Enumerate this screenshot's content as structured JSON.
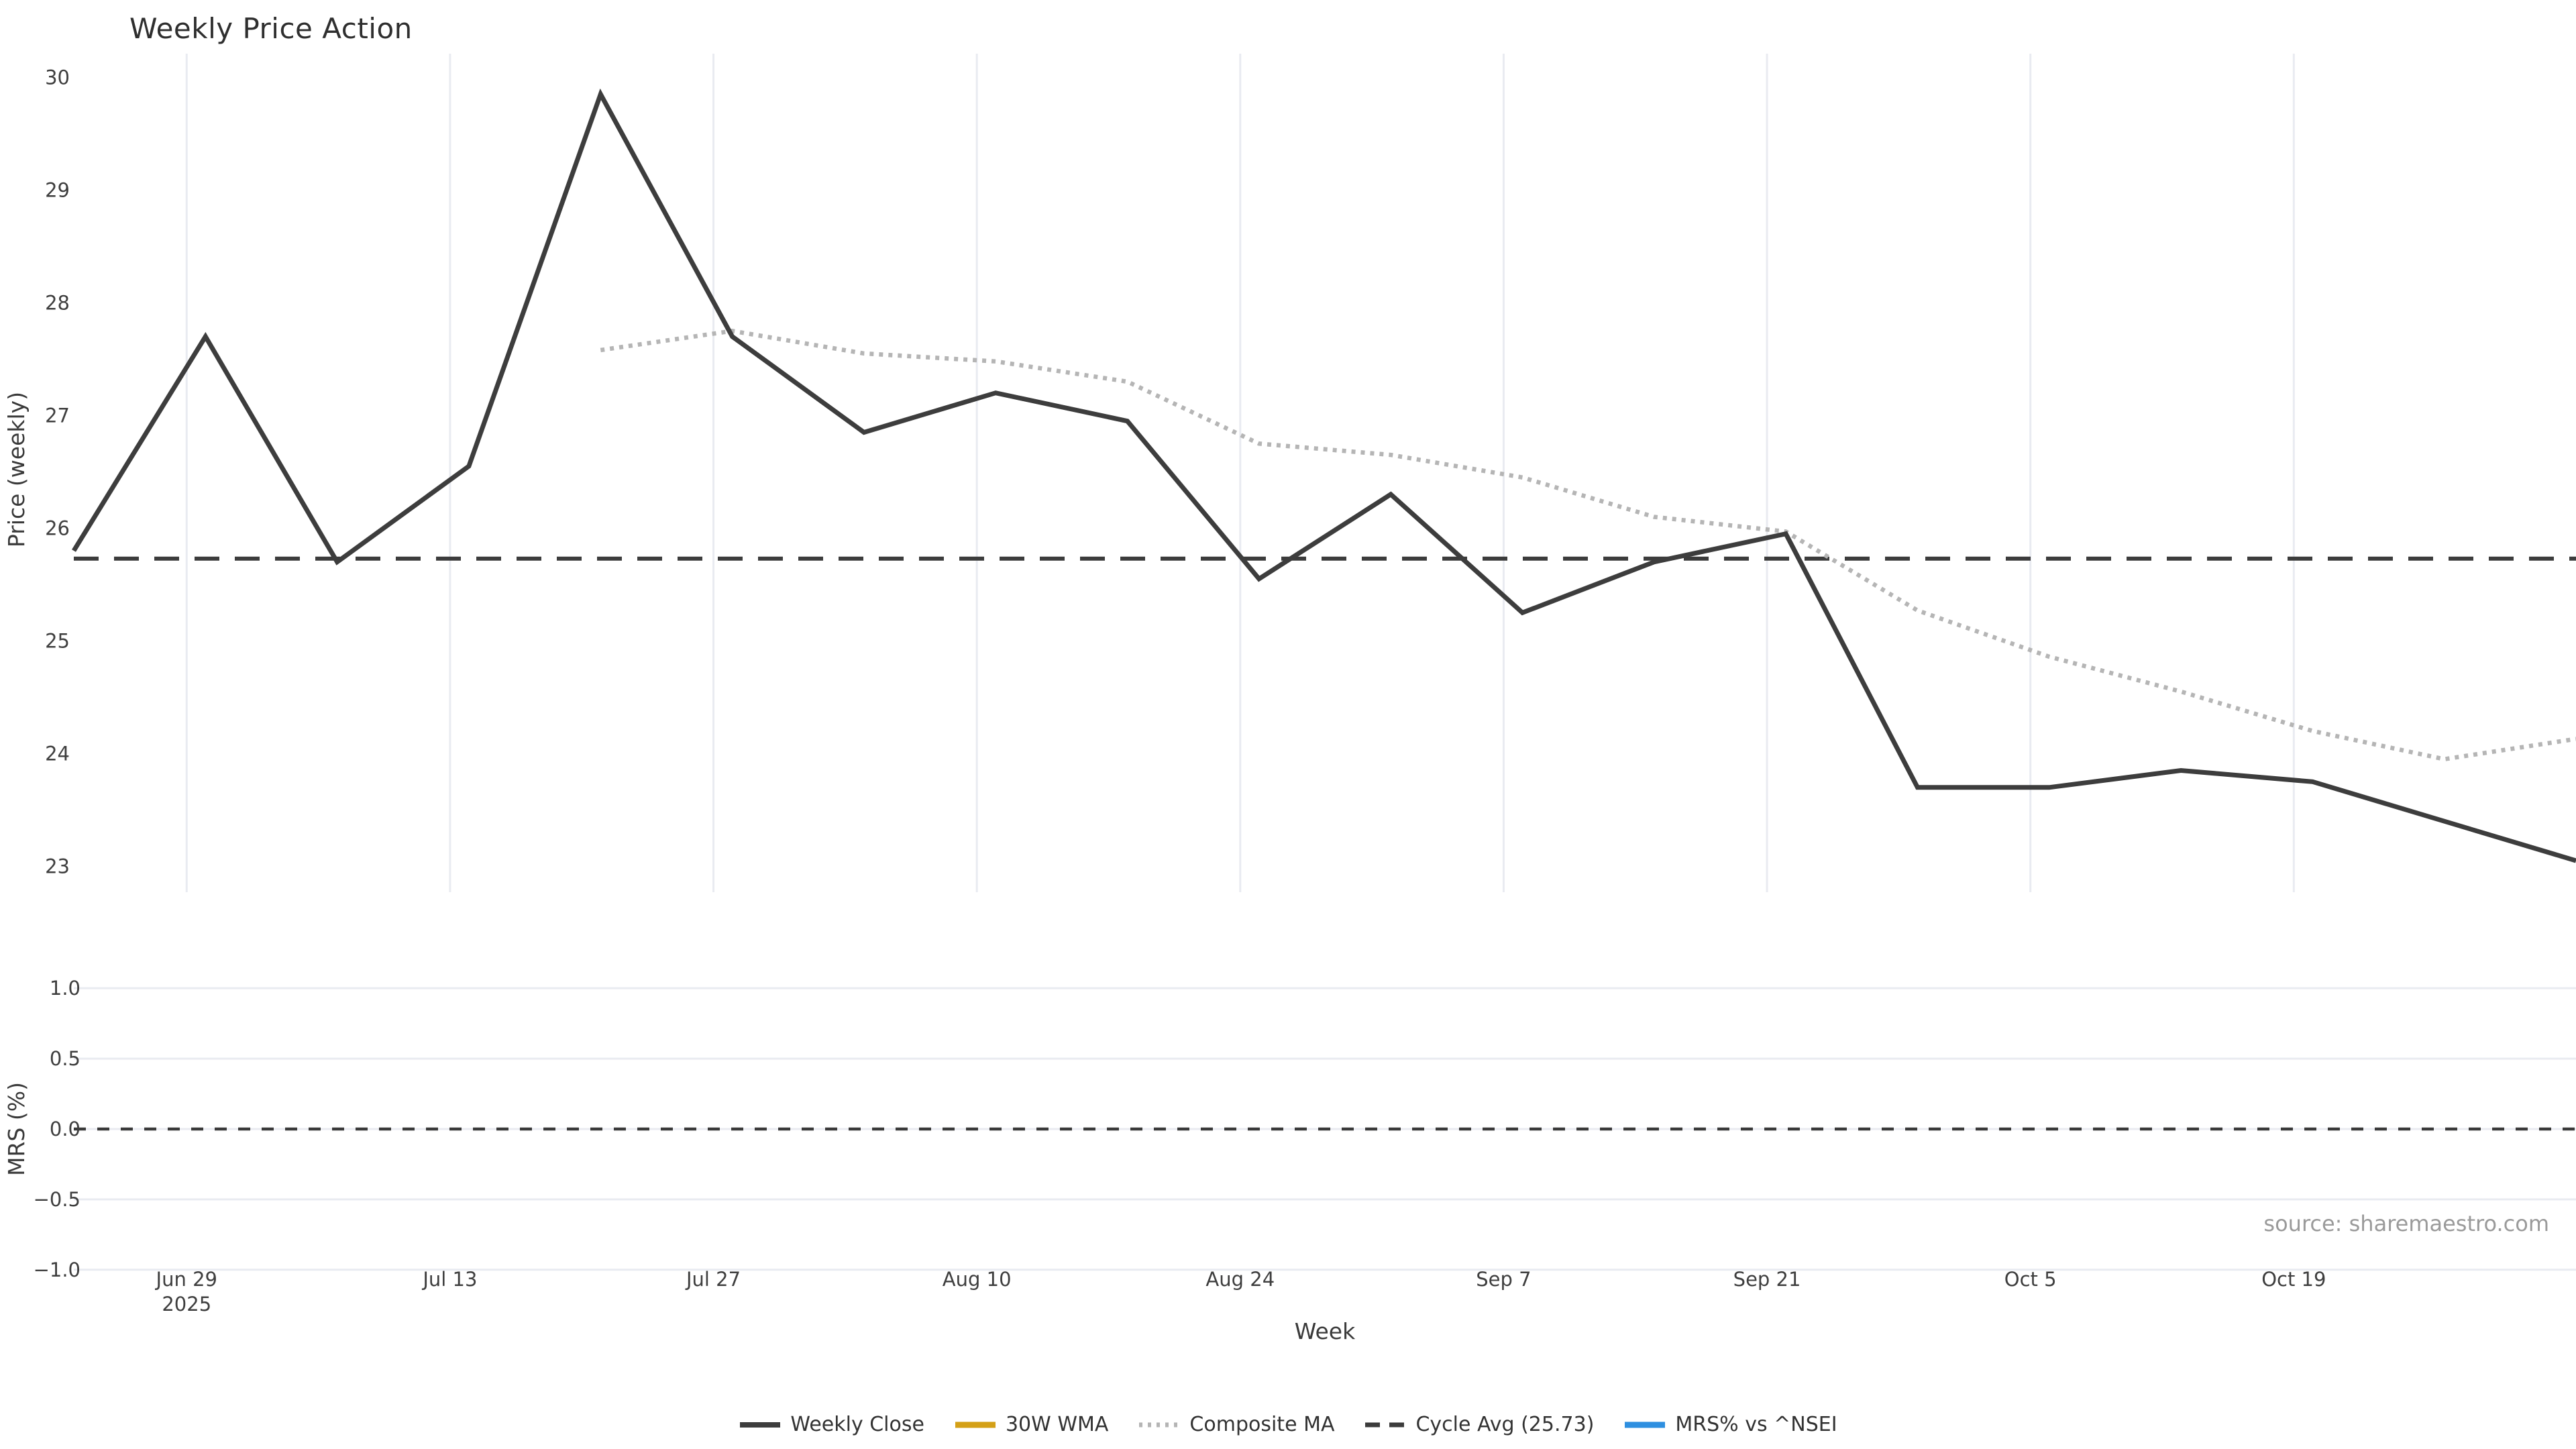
{
  "title": "Weekly Price Action",
  "source_note": "source: sharemaestro.com",
  "price_axis": {
    "title": "Price (weekly)",
    "tick_values": [
      30,
      29,
      28,
      27,
      26,
      25,
      24,
      23
    ],
    "range": [
      22.77,
      30.21
    ]
  },
  "mrs_axis": {
    "title": "MRS (%)",
    "tick_labels": [
      "1.0",
      "0.5",
      "0.0",
      "−0.5",
      "−1.0"
    ],
    "tick_values": [
      1.0,
      0.5,
      0.0,
      -0.5,
      -1.0
    ],
    "range": [
      -1.02,
      1.12
    ]
  },
  "x_axis": {
    "title": "Week",
    "ticks": [
      {
        "label": "Jun 29",
        "sub": "2025",
        "day": 6
      },
      {
        "label": "Jul 13",
        "sub": "",
        "day": 20
      },
      {
        "label": "Jul 27",
        "sub": "",
        "day": 34
      },
      {
        "label": "Aug 10",
        "sub": "",
        "day": 48
      },
      {
        "label": "Aug 24",
        "sub": "",
        "day": 62
      },
      {
        "label": "Sep 7",
        "sub": "",
        "day": 76
      },
      {
        "label": "Sep 21",
        "sub": "",
        "day": 90
      },
      {
        "label": "Oct 5",
        "sub": "",
        "day": 104
      },
      {
        "label": "Oct 19",
        "sub": "",
        "day": 118
      }
    ],
    "total_days": 133
  },
  "legend": {
    "items": [
      {
        "label": "Weekly Close",
        "color": "#3d3d3d",
        "style": "solid"
      },
      {
        "label": "30W WMA",
        "color": "#d4a017",
        "style": "solid"
      },
      {
        "label": "Composite MA",
        "color": "#b5b5b5",
        "style": "dotted"
      },
      {
        "label": "Cycle Avg (25.73)",
        "color": "#3c3c3c",
        "style": "dashed"
      },
      {
        "label": "MRS% vs ^NSEI",
        "color": "#2e8fe0",
        "style": "solid"
      }
    ]
  },
  "chart_data": {
    "type": "line",
    "title": "Weekly Price Action",
    "xlabel": "Week",
    "ylabel_top": "Price (weekly)",
    "ylabel_bottom": "MRS (%)",
    "x": [
      "Jun 23",
      "Jun 30",
      "Jul 7",
      "Jul 14",
      "Jul 21",
      "Jul 28",
      "Aug 4",
      "Aug 11",
      "Aug 18",
      "Aug 25",
      "Sep 1",
      "Sep 8",
      "Sep 15",
      "Sep 22",
      "Sep 29",
      "Oct 6",
      "Oct 13",
      "Oct 20",
      "Oct 27",
      "Nov 3"
    ],
    "series": [
      {
        "name": "Weekly Close",
        "color": "#3d3d3d",
        "dash": "solid",
        "width": 7,
        "start_index": 0,
        "values": [
          25.8,
          27.7,
          25.7,
          26.55,
          29.85,
          27.7,
          26.85,
          27.2,
          26.95,
          25.55,
          26.3,
          25.25,
          25.7,
          25.95,
          23.7,
          23.7,
          23.85,
          23.75,
          23.4,
          23.05
        ]
      },
      {
        "name": "Composite MA",
        "color": "#b5b5b5",
        "dash": "dot",
        "width": 6.5,
        "start_index": 4,
        "values": [
          27.58,
          27.75,
          27.55,
          27.48,
          27.3,
          26.75,
          26.65,
          26.45,
          26.1,
          25.97,
          25.27,
          24.86,
          24.55,
          24.2,
          23.95,
          24.13
        ]
      },
      {
        "name": "30W WMA",
        "color": "#d4a017",
        "dash": "solid",
        "width": 7,
        "start_index": 0,
        "values": []
      },
      {
        "name": "MRS% vs ^NSEI",
        "color": "#2e8fe0",
        "dash": "solid",
        "width": 7,
        "start_index": 0,
        "values": []
      }
    ],
    "cycle_avg": 25.73,
    "mrs_zero_line": 0.0,
    "price_ylim": [
      22.77,
      30.21
    ],
    "mrs_ylim": [
      -1.02,
      1.12
    ],
    "grid": "vertical-on-price, horizontal-on-mrs",
    "legend_position": "bottom-center"
  }
}
